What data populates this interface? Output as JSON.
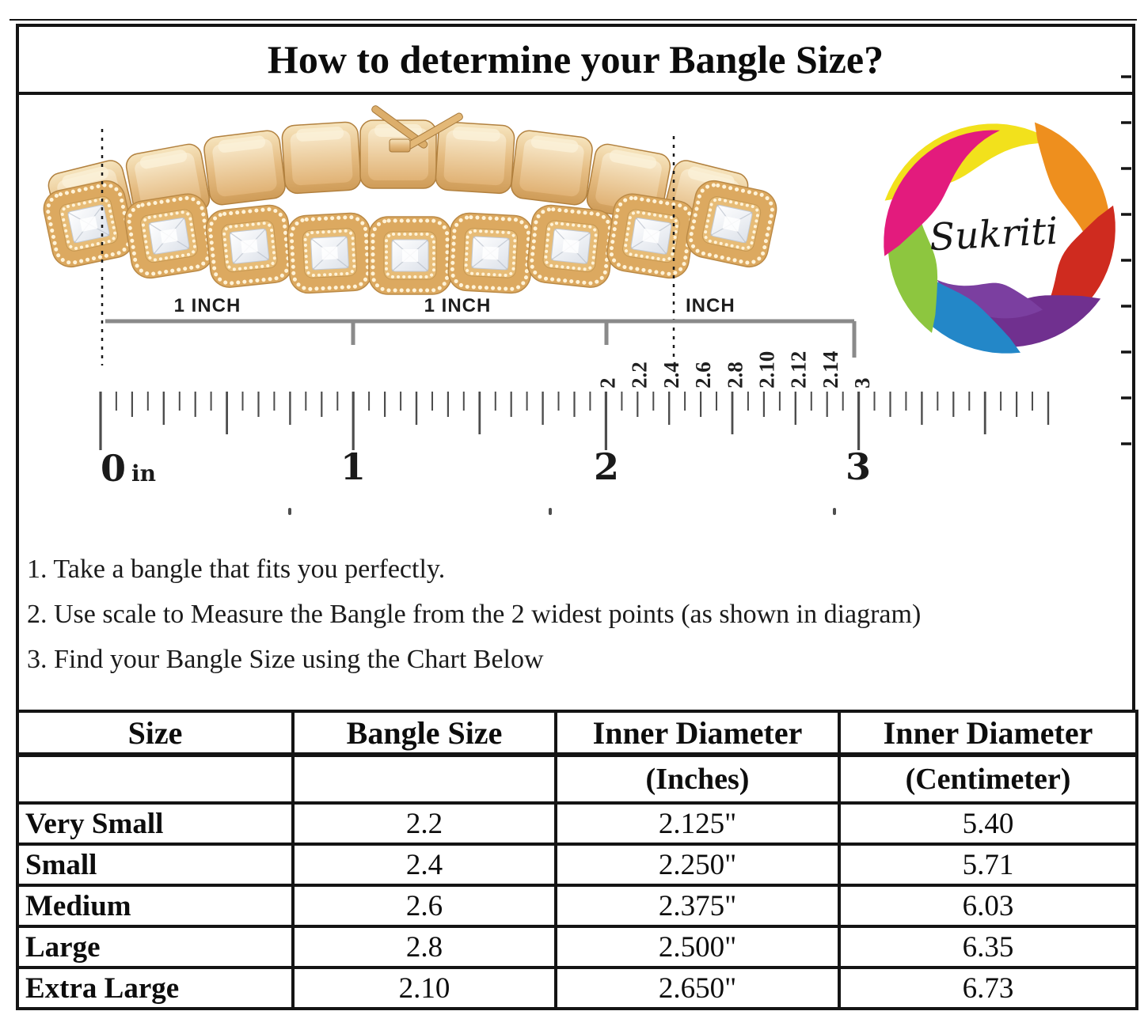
{
  "page": {
    "title": "How to determine your Bangle Size?"
  },
  "brand": {
    "name": "Sukriti",
    "petal_colors": [
      "#f2e11c",
      "#ee8f1e",
      "#cf2b1f",
      "#70308f",
      "#7b3fa0",
      "#2387c8",
      "#8dc63f",
      "#e31b7d"
    ]
  },
  "diagram": {
    "inch_labels": [
      "1 INCH",
      "1 INCH",
      "INCH"
    ],
    "bangle_size_ticks": [
      "2",
      "2.2",
      "2.4",
      "2.6",
      "2.8",
      "2.10",
      "2.12",
      "2.14",
      "3"
    ],
    "ruler_numbers": [
      "0",
      "1",
      "2",
      "3"
    ],
    "ruler_unit": "in"
  },
  "instructions": [
    "1. Take a bangle that fits you perfectly.",
    "2. Use scale to Measure the Bangle from the 2 widest points (as shown in diagram)",
    "3. Find your Bangle Size using the Chart Below"
  ],
  "table": {
    "col_headers": [
      "Size",
      "Bangle Size",
      "Inner Diameter",
      "Inner Diameter"
    ],
    "col_subheaders": [
      "",
      "",
      "(Inches)",
      "(Centimeter)"
    ],
    "rows": [
      [
        "Very Small",
        "2.2",
        "2.125\"",
        "5.40"
      ],
      [
        "Small",
        "2.4",
        "2.250\"",
        "5.71"
      ],
      [
        "Medium",
        "2.6",
        "2.375\"",
        "6.03"
      ],
      [
        "Large",
        "2.8",
        "2.500\"",
        "6.35"
      ],
      [
        "Extra Large",
        "2.10",
        "2.650\"",
        "6.73"
      ]
    ]
  }
}
